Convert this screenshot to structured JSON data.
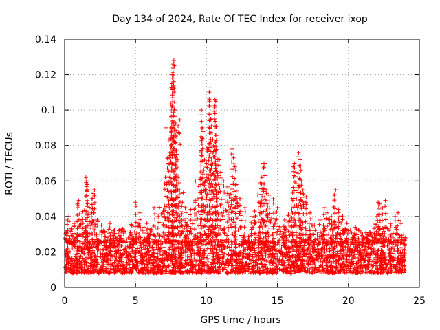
{
  "chart_data": {
    "type": "scatter",
    "title": "Day 134 of 2024, Rate Of TEC Index for receiver ixop",
    "xlabel": "GPS time / hours",
    "ylabel": "ROTI / TECUs",
    "xlim": [
      0,
      25
    ],
    "ylim": [
      0,
      0.14
    ],
    "x_ticks": [
      0,
      5,
      10,
      15,
      20,
      25
    ],
    "x_tick_labels": [
      "0",
      "5",
      "10",
      "15",
      "20",
      "25"
    ],
    "y_ticks": [
      0,
      0.02,
      0.04,
      0.06,
      0.08,
      0.1,
      0.12,
      0.14
    ],
    "y_tick_labels": [
      "0",
      "0.02",
      "0.04",
      "0.06",
      "0.08",
      "0.1",
      "0.12",
      "0.14"
    ],
    "grid": true,
    "marker": "plus",
    "color": "#ff0000",
    "series": [
      {
        "name": "ROTI",
        "baseline_band": [
          0.005,
          0.025
        ],
        "points": [
          [
            0.1,
            0.031
          ],
          [
            0.2,
            0.038
          ],
          [
            0.3,
            0.04
          ],
          [
            0.5,
            0.033
          ],
          [
            0.8,
            0.03
          ],
          [
            0.9,
            0.047
          ],
          [
            1.0,
            0.049
          ],
          [
            1.3,
            0.036
          ],
          [
            1.5,
            0.062
          ],
          [
            1.55,
            0.06
          ],
          [
            1.6,
            0.058
          ],
          [
            1.7,
            0.041
          ],
          [
            1.9,
            0.05
          ],
          [
            2.0,
            0.053
          ],
          [
            2.1,
            0.055
          ],
          [
            2.3,
            0.038
          ],
          [
            2.6,
            0.035
          ],
          [
            3.2,
            0.036
          ],
          [
            3.4,
            0.03
          ],
          [
            4.1,
            0.033
          ],
          [
            4.6,
            0.03
          ],
          [
            5.0,
            0.048
          ],
          [
            5.3,
            0.042
          ],
          [
            5.6,
            0.034
          ],
          [
            5.8,
            0.036
          ],
          [
            6.3,
            0.045
          ],
          [
            6.6,
            0.04
          ],
          [
            7.0,
            0.043
          ],
          [
            7.1,
            0.062
          ],
          [
            7.2,
            0.058
          ],
          [
            7.3,
            0.07
          ],
          [
            7.4,
            0.076
          ],
          [
            7.5,
            0.09
          ],
          [
            7.55,
            0.115
          ],
          [
            7.6,
            0.12
          ],
          [
            7.65,
            0.126
          ],
          [
            7.7,
            0.128
          ],
          [
            7.75,
            0.1
          ],
          [
            7.8,
            0.092
          ],
          [
            7.85,
            0.085
          ],
          [
            7.9,
            0.075
          ],
          [
            8.0,
            0.062
          ],
          [
            8.1,
            0.055
          ],
          [
            8.3,
            0.048
          ],
          [
            8.5,
            0.045
          ],
          [
            8.9,
            0.044
          ],
          [
            9.2,
            0.048
          ],
          [
            9.4,
            0.05
          ],
          [
            9.6,
            0.085
          ],
          [
            9.65,
            0.1
          ],
          [
            9.7,
            0.09
          ],
          [
            9.8,
            0.066
          ],
          [
            9.9,
            0.06
          ],
          [
            10.0,
            0.07
          ],
          [
            10.1,
            0.079
          ],
          [
            10.2,
            0.105
          ],
          [
            10.25,
            0.113
          ],
          [
            10.3,
            0.095
          ],
          [
            10.4,
            0.087
          ],
          [
            10.5,
            0.08
          ],
          [
            10.6,
            0.106
          ],
          [
            10.65,
            0.105
          ],
          [
            10.7,
            0.083
          ],
          [
            10.8,
            0.072
          ],
          [
            11.0,
            0.065
          ],
          [
            11.2,
            0.06
          ],
          [
            11.5,
            0.052
          ],
          [
            11.8,
            0.078
          ],
          [
            11.9,
            0.073
          ],
          [
            12.0,
            0.068
          ],
          [
            12.1,
            0.058
          ],
          [
            12.4,
            0.05
          ],
          [
            12.7,
            0.045
          ],
          [
            13.2,
            0.04
          ],
          [
            13.4,
            0.043
          ],
          [
            13.7,
            0.048
          ],
          [
            13.8,
            0.059
          ],
          [
            13.9,
            0.062
          ],
          [
            14.0,
            0.07
          ],
          [
            14.1,
            0.07
          ],
          [
            14.2,
            0.055
          ],
          [
            14.4,
            0.052
          ],
          [
            14.7,
            0.05
          ],
          [
            15.0,
            0.045
          ],
          [
            15.5,
            0.038
          ],
          [
            15.8,
            0.035
          ],
          [
            16.0,
            0.05
          ],
          [
            16.1,
            0.068
          ],
          [
            16.2,
            0.07
          ],
          [
            16.3,
            0.065
          ],
          [
            16.5,
            0.076
          ],
          [
            16.6,
            0.072
          ],
          [
            16.7,
            0.06
          ],
          [
            16.8,
            0.055
          ],
          [
            17.0,
            0.048
          ],
          [
            17.3,
            0.042
          ],
          [
            17.6,
            0.035
          ],
          [
            18.0,
            0.038
          ],
          [
            18.3,
            0.045
          ],
          [
            18.5,
            0.042
          ],
          [
            18.8,
            0.04
          ],
          [
            19.0,
            0.052
          ],
          [
            19.1,
            0.055
          ],
          [
            19.3,
            0.044
          ],
          [
            19.6,
            0.04
          ],
          [
            19.9,
            0.036
          ],
          [
            20.5,
            0.034
          ],
          [
            21.0,
            0.03
          ],
          [
            21.5,
            0.031
          ],
          [
            22.0,
            0.04
          ],
          [
            22.1,
            0.048
          ],
          [
            22.2,
            0.047
          ],
          [
            22.4,
            0.045
          ],
          [
            22.6,
            0.049
          ],
          [
            23.0,
            0.035
          ],
          [
            23.3,
            0.04
          ],
          [
            23.5,
            0.042
          ],
          [
            23.7,
            0.036
          ],
          [
            23.9,
            0.03
          ],
          [
            24.0,
            0.028
          ]
        ]
      }
    ]
  }
}
